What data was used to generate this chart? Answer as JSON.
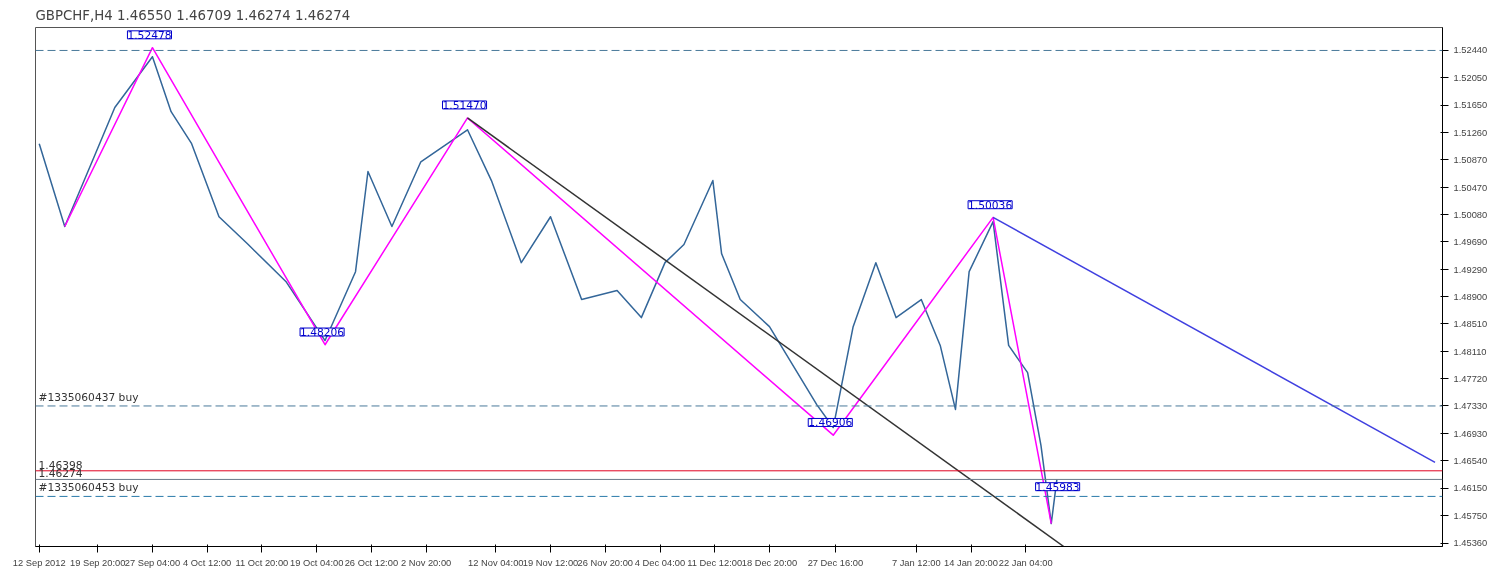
{
  "chart_data": {
    "type": "line",
    "title": "GBPCHF,H4  1.46550 1.46709 1.46274 1.46274",
    "x": [
      "2012-09-12T00:00",
      "2012-09-15T10:00",
      "2012-09-19T14:00",
      "2012-09-22T03:00",
      "2012-09-27T04:00",
      "2012-09-29T16:00",
      "2012-10-02T10:00",
      "2012-10-06T02:00",
      "2012-10-10T00:00",
      "2012-10-15T01:00",
      "2012-10-20T07:00",
      "2012-10-24T09:00",
      "2012-10-26T01:00",
      "2012-10-29T06:00",
      "2012-11-02T03:00",
      "2012-11-08T09:00",
      "2012-11-11T14:00",
      "2012-11-15T14:00",
      "2012-11-19T12:00",
      "2012-11-23T16:00",
      "2012-11-28T10:00",
      "2012-12-01T16:00",
      "2012-12-04T20:00",
      "2012-12-07T09:00",
      "2012-12-11T06:00",
      "2012-12-12T10:00",
      "2012-12-14T22:00",
      "2012-12-18T20:00",
      "2012-12-25T04:00",
      "2012-12-27T09:00",
      "2012-12-30T01:00",
      "2013-01-02T02:00",
      "2013-01-04T19:00",
      "2013-01-08T04:00",
      "2013-01-10T17:00",
      "2013-01-12T18:00",
      "2013-01-14T14:00",
      "2013-01-17T19:00",
      "2013-01-19T21:00",
      "2013-01-22T10:00",
      "2013-01-24T05:00",
      "2013-01-25T14:00",
      "2013-01-26T08:00"
    ],
    "series": [
      {
        "color": "#336699",
        "values": [
          1.511,
          1.4991,
          1.5097,
          1.5162,
          1.5235,
          1.5156,
          1.511,
          1.5005,
          1.4965,
          1.4912,
          1.4827,
          1.4926,
          1.507,
          1.4991,
          1.5084,
          1.513,
          1.5057,
          1.4939,
          1.5005,
          1.4886,
          1.4899,
          1.486,
          1.4939,
          1.4965,
          1.5057,
          1.4952,
          1.4886,
          1.4847,
          1.4735,
          1.4702,
          1.4847,
          1.4939,
          1.486,
          1.4886,
          1.482,
          1.4728,
          1.4926,
          1.4998,
          1.482,
          1.4781,
          1.4676,
          1.4564,
          1.4627
        ]
      },
      {
        "color": "#ff00ff",
        "x": [
          "2012-09-15T10:00",
          "2012-09-27T04:00",
          "2012-10-20T07:00",
          "2012-11-08T09:00",
          "2012-12-27T09:00",
          "2013-01-17T19:00",
          "2013-01-25T14:00"
        ],
        "values": [
          1.4991,
          1.5248,
          1.4821,
          1.5147,
          1.4691,
          1.5004,
          1.4564
        ]
      },
      {
        "color": "#333333",
        "x": [
          "2012-11-08T09:00",
          "2013-01-27T06:00"
        ],
        "values": [
          1.5147,
          1.4531
        ]
      },
      {
        "color": "#4040e0",
        "x": [
          "2013-01-17T19:00",
          "2013-03-18T00:00"
        ],
        "values": [
          1.5004,
          1.4652
        ]
      }
    ],
    "xlim": [
      "2012-09-11T12:00",
      "2013-03-19T00:00"
    ],
    "ylim": [
      1.4531,
      1.5277
    ],
    "xticks": [
      {
        "value": "2012-09-12T00:00",
        "label": "12 Sep 2012"
      },
      {
        "value": "2012-09-19T20:00",
        "label": "19 Sep 20:00"
      },
      {
        "value": "2012-09-27T04:00",
        "label": "27 Sep 04:00"
      },
      {
        "value": "2012-10-04T12:00",
        "label": "4 Oct 12:00"
      },
      {
        "value": "2012-10-11T20:00",
        "label": "11 Oct 20:00"
      },
      {
        "value": "2012-10-19T04:00",
        "label": "19 Oct 04:00"
      },
      {
        "value": "2012-10-26T12:00",
        "label": "26 Oct 12:00"
      },
      {
        "value": "2012-11-02T20:00",
        "label": "2 Nov 20:00"
      },
      {
        "value": "2012-11-12T04:00",
        "label": "12 Nov 04:00"
      },
      {
        "value": "2012-11-19T12:00",
        "label": "19 Nov 12:00"
      },
      {
        "value": "2012-11-26T20:00",
        "label": "26 Nov 20:00"
      },
      {
        "value": "2012-12-04T04:00",
        "label": "4 Dec 04:00"
      },
      {
        "value": "2012-12-11T12:00",
        "label": "11 Dec 12:00"
      },
      {
        "value": "2012-12-18T20:00",
        "label": "18 Dec 20:00"
      },
      {
        "value": "2012-12-27T16:00",
        "label": "27 Dec 16:00"
      },
      {
        "value": "2013-01-07T12:00",
        "label": "7 Jan 12:00"
      },
      {
        "value": "2013-01-14T20:00",
        "label": "14 Jan 20:00"
      },
      {
        "value": "2013-01-22T04:00",
        "label": "22 Jan 04:00"
      }
    ],
    "yticks": [
      {
        "value": 1.4536,
        "label": "1.45360"
      },
      {
        "value": 1.4575,
        "label": "1.45750"
      },
      {
        "value": 1.4615,
        "label": "1.46150"
      },
      {
        "value": 1.4654,
        "label": "1.46540"
      },
      {
        "value": 1.4693,
        "label": "1.46930"
      },
      {
        "value": 1.4733,
        "label": "1.47330"
      },
      {
        "value": 1.4772,
        "label": "1.47720"
      },
      {
        "value": 1.4811,
        "label": "1.48110"
      },
      {
        "value": 1.4851,
        "label": "1.48510"
      },
      {
        "value": 1.489,
        "label": "1.48900"
      },
      {
        "value": 1.4929,
        "label": "1.49290"
      },
      {
        "value": 1.4969,
        "label": "1.49690"
      },
      {
        "value": 1.5008,
        "label": "1.50080"
      },
      {
        "value": 1.5047,
        "label": "1.50470"
      },
      {
        "value": 1.5087,
        "label": "1.50870"
      },
      {
        "value": 1.5126,
        "label": "1.51260"
      },
      {
        "value": 1.5165,
        "label": "1.51650"
      },
      {
        "value": 1.5205,
        "label": "1.52050"
      },
      {
        "value": 1.5244,
        "label": "1.52440"
      }
    ],
    "ref_lines": [
      {
        "axis": "y",
        "value": 1.5244,
        "label": null,
        "color": "#4a7a9a",
        "line_style": "dashed"
      },
      {
        "axis": "y",
        "value": 1.4733,
        "label": "#1335060437 buy",
        "color": "#4a7a9a",
        "line_style": "dashed"
      },
      {
        "axis": "y",
        "value": 1.4603,
        "label": "#1335060453 buy",
        "color": "#2a7aaa",
        "line_style": "dashed"
      },
      {
        "axis": "y",
        "value": 1.46398,
        "label": "1.46398",
        "color": "#e00020",
        "line_style": "solid"
      },
      {
        "axis": "y",
        "value": 1.46274,
        "label": "1.46274",
        "color": "#6a7a8a",
        "line_style": "solid"
      }
    ],
    "annotations": [
      {
        "text": "1.52478",
        "x": "2012-09-27T04:00",
        "y": 1.52478
      },
      {
        "text": "1.51470",
        "x": "2012-11-08T09:00",
        "y": 1.5147
      },
      {
        "text": "1.48206",
        "x": "2012-10-20T07:00",
        "y": 1.48206
      },
      {
        "text": "1.46906",
        "x": "2012-12-27T09:00",
        "y": 1.46906
      },
      {
        "text": "1.50036",
        "x": "2013-01-17T19:00",
        "y": 1.50036
      },
      {
        "text": "1.45983",
        "x": "2013-01-26T20:00",
        "y": 1.45983
      }
    ],
    "grid": false
  }
}
